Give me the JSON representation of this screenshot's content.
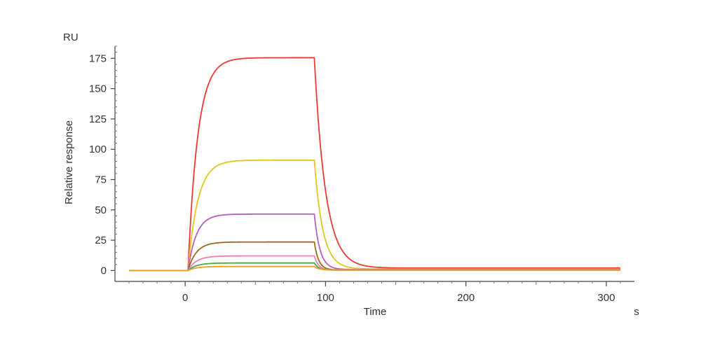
{
  "chart_data": {
    "type": "line",
    "title": "",
    "xlabel": "Time",
    "ylabel": "Relative response",
    "x_unit": "s",
    "y_unit": "RU",
    "xlim": [
      -50,
      320
    ],
    "ylim": [
      -9,
      185
    ],
    "x_ticks": [
      0,
      100,
      200,
      300
    ],
    "y_ticks": [
      0,
      25,
      50,
      75,
      100,
      125,
      150,
      175
    ],
    "grid": false,
    "legend": "none",
    "model": {
      "baseline_start": -40,
      "injection_start": 2,
      "injection_end": 92,
      "end": 310
    },
    "series": [
      {
        "color": "#ee3a34",
        "plateau": 175.5,
        "assoc_tau": 7,
        "dissoc_tau": 8,
        "residual": 2.0
      },
      {
        "color": "#dfc91f",
        "plateau": 91,
        "assoc_tau": 7,
        "dissoc_tau": 6,
        "residual": 1.2
      },
      {
        "color": "#b75fbe",
        "plateau": 46.5,
        "assoc_tau": 6,
        "dissoc_tau": 4,
        "residual": 0.8
      },
      {
        "color": "#9b6a1e",
        "plateau": 23.5,
        "assoc_tau": 6,
        "dissoc_tau": 3,
        "residual": 0.5
      },
      {
        "color": "#f27db4",
        "plateau": 12,
        "assoc_tau": 6,
        "dissoc_tau": 3,
        "residual": 0.3
      },
      {
        "color": "#3fae49",
        "plateau": 6.2,
        "assoc_tau": 6,
        "dissoc_tau": 3,
        "residual": 0.3
      },
      {
        "color": "#f39c1e",
        "plateau": 3.3,
        "assoc_tau": 6,
        "dissoc_tau": 3,
        "residual": 0.5
      }
    ]
  }
}
